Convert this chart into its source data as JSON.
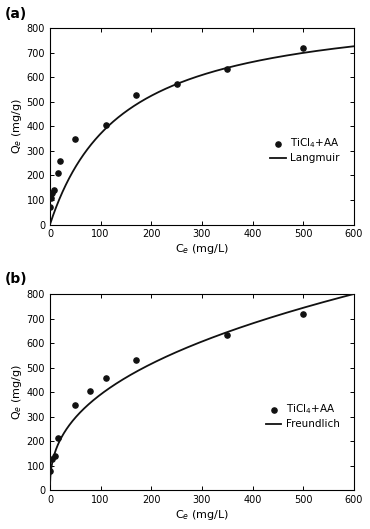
{
  "panel_a": {
    "scatter_x": [
      1,
      3,
      5,
      8,
      15,
      20,
      50,
      110,
      170,
      250,
      350,
      500
    ],
    "scatter_y": [
      70,
      110,
      130,
      140,
      210,
      260,
      350,
      405,
      530,
      575,
      635,
      720
    ],
    "langmuir_qmax": 900,
    "langmuir_KL": 0.007,
    "xlabel": "C$_e$ (mg/L)",
    "ylabel": "Q$_e$ (mg/g)",
    "xlim": [
      0,
      600
    ],
    "ylim": [
      0,
      800
    ],
    "xticks": [
      0,
      100,
      200,
      300,
      400,
      500,
      600
    ],
    "yticks": [
      0,
      100,
      200,
      300,
      400,
      500,
      600,
      700,
      800
    ],
    "label_scatter": "TiCl$_4$+AA",
    "label_line": "Langmuir",
    "panel_label": "(a)"
  },
  "panel_b": {
    "scatter_x": [
      1,
      5,
      10,
      15,
      50,
      80,
      110,
      170,
      350,
      500
    ],
    "scatter_y": [
      80,
      130,
      140,
      215,
      350,
      405,
      460,
      530,
      635,
      720
    ],
    "freundlich_KF": 62,
    "freundlich_n": 0.4,
    "xlabel": "C$_e$ (mg/L)",
    "ylabel": "Q$_e$ (mg/g)",
    "xlim": [
      0,
      600
    ],
    "ylim": [
      0,
      800
    ],
    "xticks": [
      0,
      100,
      200,
      300,
      400,
      500,
      600
    ],
    "yticks": [
      0,
      100,
      200,
      300,
      400,
      500,
      600,
      700,
      800
    ],
    "label_scatter": "TiCl$_4$+AA",
    "label_line": "Freundlich",
    "panel_label": "(b)"
  },
  "figure_bg": "#ffffff",
  "line_color": "#111111",
  "scatter_color": "#111111",
  "scatter_size": 14,
  "line_width": 1.3
}
